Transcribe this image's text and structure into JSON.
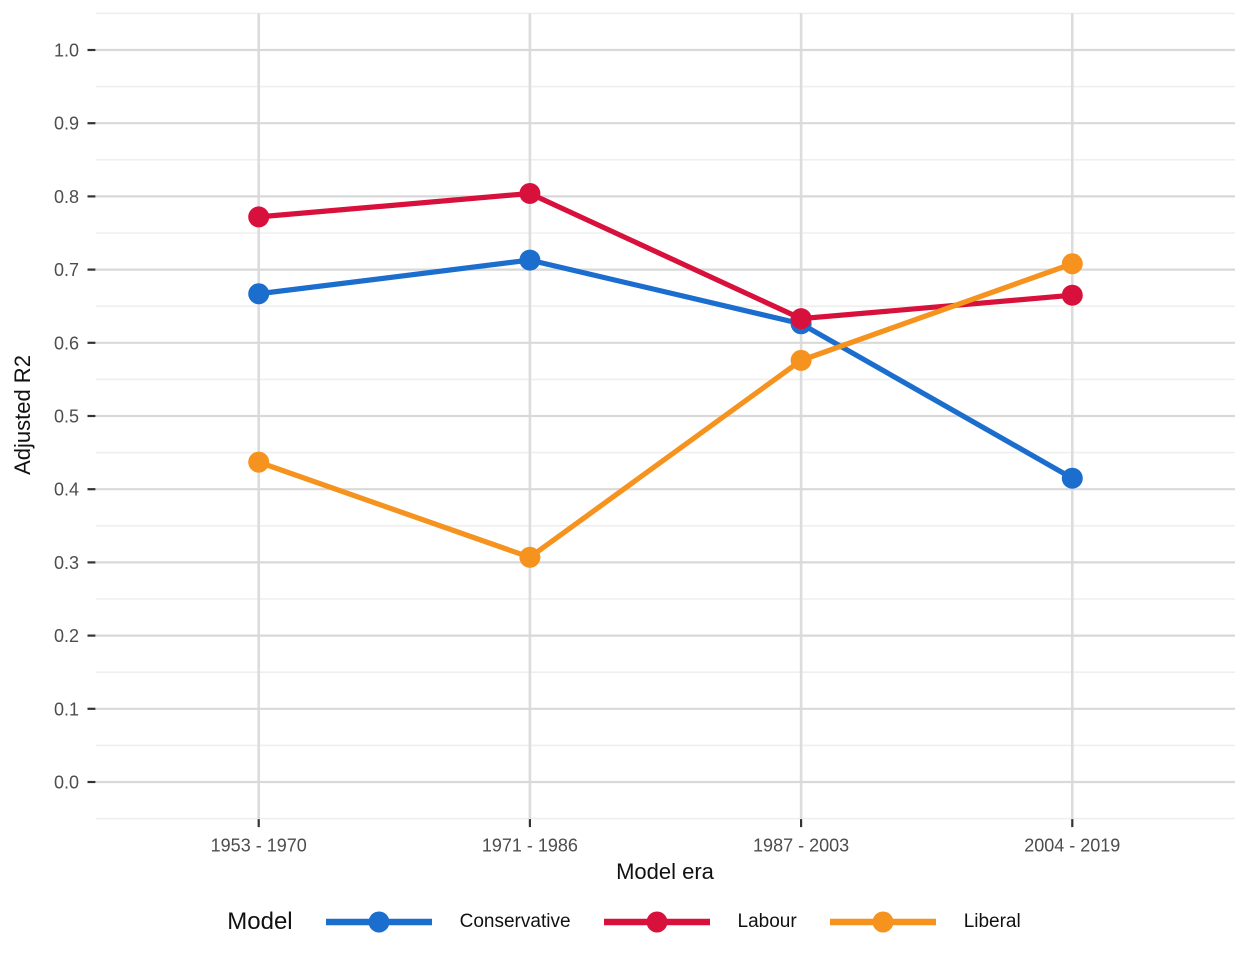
{
  "figure": {
    "x_axis_title": "Model era",
    "y_axis_title": "Adjusted R2",
    "legend_title": "Model"
  },
  "chart_data": {
    "type": "line",
    "title": "",
    "xlabel": "Model era",
    "ylabel": "Adjusted R2",
    "legend_title": "Model",
    "legend_position": "bottom",
    "grid": true,
    "background": "#ffffff",
    "categories": [
      "1953 - 1970",
      "1971 - 1986",
      "1987 - 2003",
      "2004 - 2019"
    ],
    "series": [
      {
        "name": "Conservative",
        "color": "#1B6ECD",
        "values": [
          0.667,
          0.713,
          0.626,
          0.415
        ]
      },
      {
        "name": "Labour",
        "color": "#D8113C",
        "values": [
          0.772,
          0.804,
          0.633,
          0.665
        ]
      },
      {
        "name": "Liberal",
        "color": "#F6921E",
        "values": [
          0.437,
          0.307,
          0.576,
          0.708
        ]
      }
    ],
    "ylim": [
      -0.05,
      1.05
    ],
    "y_ticks": [
      {
        "value": 0.0,
        "label": "0.0"
      },
      {
        "value": 0.1,
        "label": "0.1"
      },
      {
        "value": 0.2,
        "label": "0.2"
      },
      {
        "value": 0.3,
        "label": "0.3"
      },
      {
        "value": 0.4,
        "label": "0.4"
      },
      {
        "value": 0.5,
        "label": "0.5"
      },
      {
        "value": 0.6,
        "label": "0.6"
      },
      {
        "value": 0.7,
        "label": "0.7"
      },
      {
        "value": 0.8,
        "label": "0.8"
      },
      {
        "value": 0.9,
        "label": "0.9"
      },
      {
        "value": 1.0,
        "label": "1.0"
      }
    ],
    "y_minor_step": 0.05
  }
}
